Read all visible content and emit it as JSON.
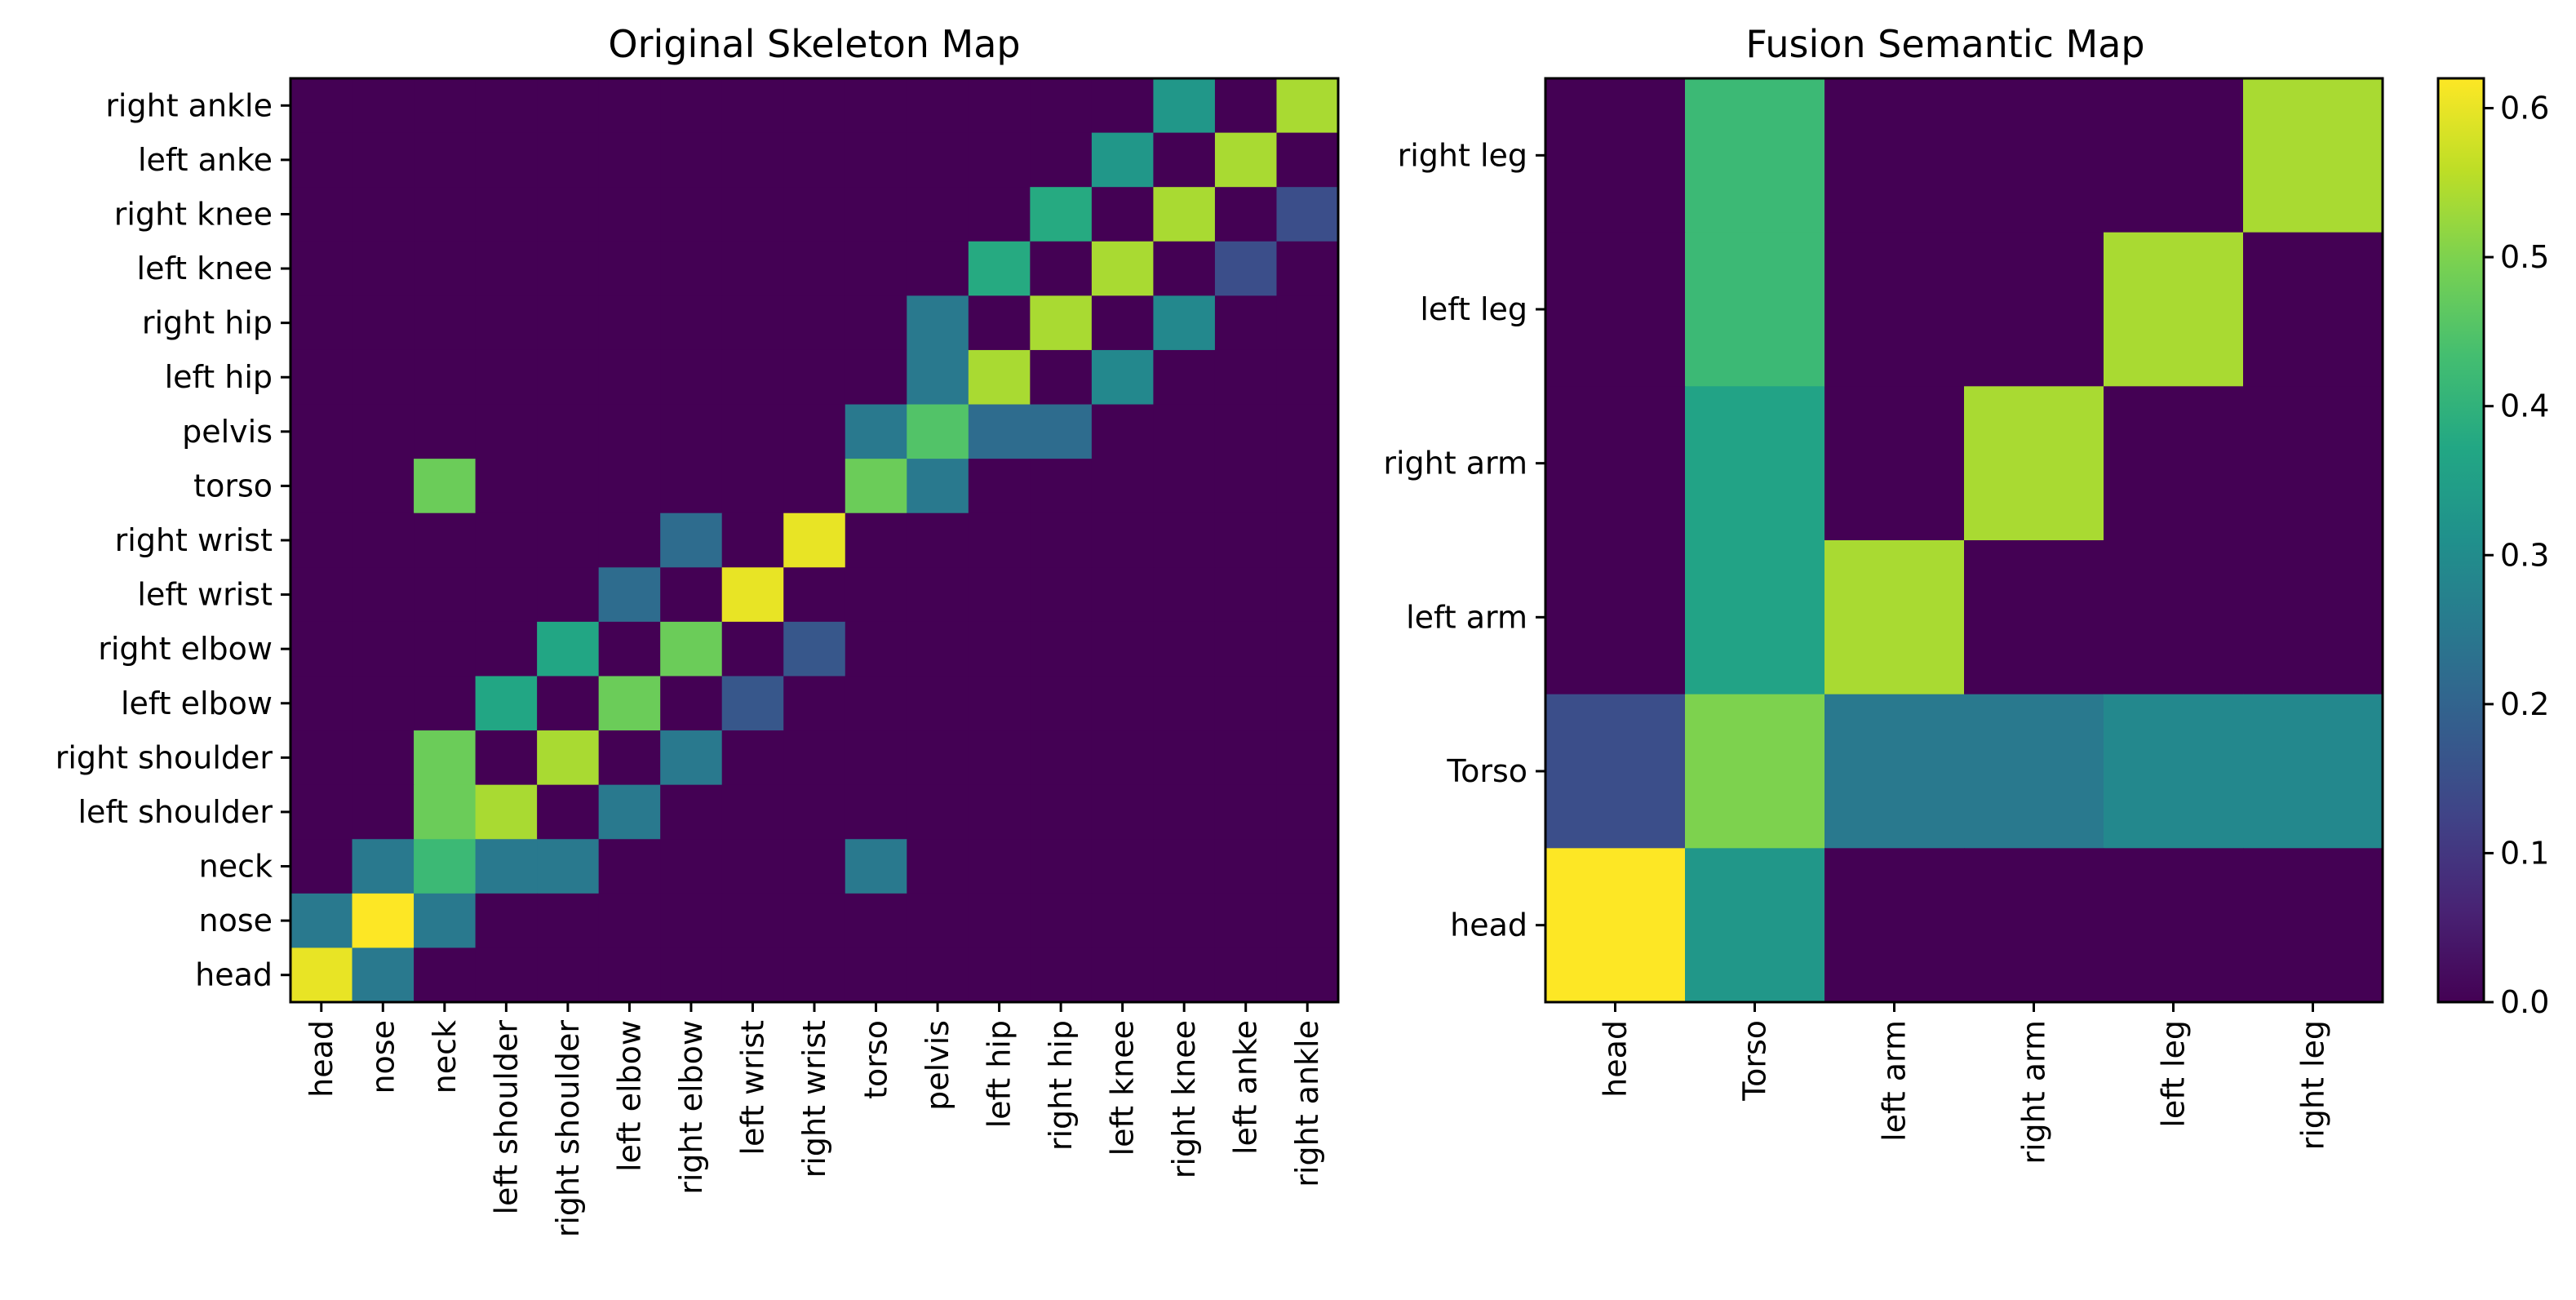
{
  "colormap": "viridis",
  "colors": {
    "background": "#ffffff",
    "axis": "#000000"
  },
  "chart_data": [
    {
      "type": "heatmap",
      "title": "Original Skeleton Map",
      "xlabel": "",
      "ylabel": "",
      "x_categories": [
        "head",
        "nose",
        "neck",
        "left shoulder",
        "right shoulder",
        "left elbow",
        "right elbow",
        "left wrist",
        "right wrist",
        "torso",
        "pelvis",
        "left hip",
        "right hip",
        "left knee",
        "right knee",
        "left anke",
        "right ankle"
      ],
      "y_categories": [
        "right ankle",
        "left anke",
        "right knee",
        "left knee",
        "right hip",
        "left hip",
        "pelvis",
        "torso",
        "right wrist",
        "left wrist",
        "right elbow",
        "left elbow",
        "right shoulder",
        "left shoulder",
        "neck",
        "nose",
        "head"
      ],
      "value_range": [
        0,
        0.62
      ],
      "matrix": [
        [
          0,
          0,
          0,
          0,
          0,
          0,
          0,
          0,
          0,
          0,
          0,
          0,
          0,
          0,
          0.33,
          0,
          0.54
        ],
        [
          0,
          0,
          0,
          0,
          0,
          0,
          0,
          0,
          0,
          0,
          0,
          0,
          0,
          0.33,
          0,
          0.54,
          0
        ],
        [
          0,
          0,
          0,
          0,
          0,
          0,
          0,
          0,
          0,
          0,
          0,
          0,
          0.38,
          0,
          0.54,
          0,
          0.15
        ],
        [
          0,
          0,
          0,
          0,
          0,
          0,
          0,
          0,
          0,
          0,
          0,
          0.38,
          0,
          0.54,
          0,
          0.15,
          0
        ],
        [
          0,
          0,
          0,
          0,
          0,
          0,
          0,
          0,
          0,
          0,
          0.25,
          0,
          0.54,
          0,
          0.29,
          0,
          0
        ],
        [
          0,
          0,
          0,
          0,
          0,
          0,
          0,
          0,
          0,
          0,
          0.25,
          0.54,
          0,
          0.29,
          0,
          0,
          0
        ],
        [
          0,
          0,
          0,
          0,
          0,
          0,
          0,
          0,
          0,
          0.25,
          0.45,
          0.22,
          0.22,
          0,
          0,
          0,
          0
        ],
        [
          0,
          0,
          0.48,
          0,
          0,
          0,
          0,
          0,
          0,
          0.48,
          0.25,
          0,
          0,
          0,
          0,
          0,
          0
        ],
        [
          0,
          0,
          0,
          0,
          0,
          0,
          0.22,
          0,
          0.6,
          0,
          0,
          0,
          0,
          0,
          0,
          0,
          0
        ],
        [
          0,
          0,
          0,
          0,
          0,
          0.22,
          0,
          0.6,
          0,
          0,
          0,
          0,
          0,
          0,
          0,
          0,
          0
        ],
        [
          0,
          0,
          0,
          0,
          0.37,
          0,
          0.48,
          0,
          0.17,
          0,
          0,
          0,
          0,
          0,
          0,
          0,
          0
        ],
        [
          0,
          0,
          0,
          0.37,
          0,
          0.48,
          0,
          0.17,
          0,
          0,
          0,
          0,
          0,
          0,
          0,
          0,
          0
        ],
        [
          0,
          0,
          0.48,
          0,
          0.54,
          0,
          0.25,
          0,
          0,
          0,
          0,
          0,
          0,
          0,
          0,
          0,
          0
        ],
        [
          0,
          0,
          0.48,
          0.54,
          0,
          0.25,
          0,
          0,
          0,
          0,
          0,
          0,
          0,
          0,
          0,
          0,
          0
        ],
        [
          0,
          0.25,
          0.42,
          0.25,
          0.25,
          0,
          0,
          0,
          0,
          0.25,
          0,
          0,
          0,
          0,
          0,
          0,
          0
        ],
        [
          0.25,
          0.62,
          0.25,
          0,
          0,
          0,
          0,
          0,
          0,
          0,
          0,
          0,
          0,
          0,
          0,
          0,
          0
        ],
        [
          0.6,
          0.25,
          0,
          0,
          0,
          0,
          0,
          0,
          0,
          0,
          0,
          0,
          0,
          0,
          0,
          0,
          0
        ]
      ]
    },
    {
      "type": "heatmap",
      "title": "Fusion Semantic Map",
      "xlabel": "",
      "ylabel": "",
      "x_categories": [
        "head",
        "Torso",
        "left arm",
        "right arm",
        "left leg",
        "right leg"
      ],
      "y_categories": [
        "right leg",
        "left leg",
        "right arm",
        "left arm",
        "Torso",
        "head"
      ],
      "value_range": [
        0,
        0.62
      ],
      "matrix": [
        [
          0,
          0.42,
          0,
          0,
          0,
          0.54
        ],
        [
          0,
          0.42,
          0,
          0,
          0.54,
          0
        ],
        [
          0,
          0.36,
          0,
          0.54,
          0,
          0
        ],
        [
          0,
          0.36,
          0.54,
          0,
          0,
          0
        ],
        [
          0.15,
          0.5,
          0.25,
          0.25,
          0.29,
          0.29
        ],
        [
          0.62,
          0.33,
          0,
          0,
          0,
          0
        ]
      ],
      "colorbar": {
        "range": [
          0,
          0.62
        ],
        "ticks": [
          0.0,
          0.1,
          0.2,
          0.3,
          0.4,
          0.5,
          0.6
        ],
        "tick_labels": [
          "0.0",
          "0.1",
          "0.2",
          "0.3",
          "0.4",
          "0.5",
          "0.6"
        ]
      }
    }
  ]
}
